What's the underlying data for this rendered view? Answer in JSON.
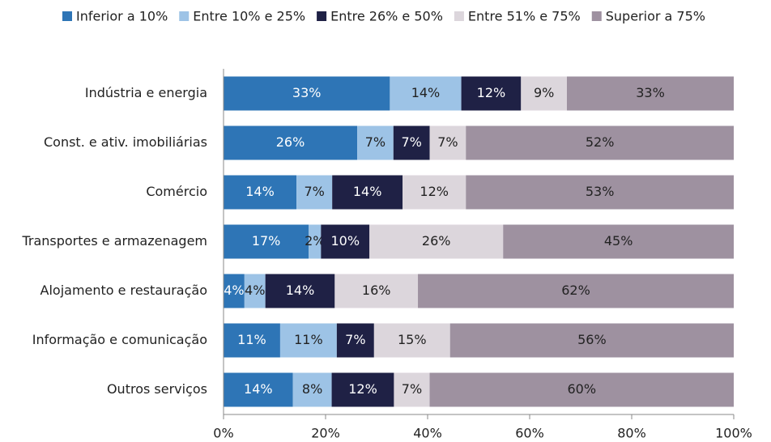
{
  "chart_data": {
    "type": "stacked_bar_horizontal",
    "categories": [
      "Indústria e energia",
      "Const. e ativ. imobiliárias",
      "Comércio",
      "Transportes e armazenagem",
      "Alojamento e restauração",
      "Informação e comunicação",
      "Outros serviços"
    ],
    "series": [
      {
        "name": "Inferior a 10%",
        "color": "#2e75b6",
        "values": [
          32.6,
          26.2,
          14.3,
          16.7,
          4.1,
          11.1,
          13.6
        ],
        "value_labels": [
          "33%",
          "26%",
          "14%",
          "17%",
          "4%",
          "11%",
          "14%"
        ]
      },
      {
        "name": "Entre 10% e 25%",
        "color": "#9dc3e6",
        "values": [
          14.0,
          7.1,
          7.0,
          2.4,
          4.1,
          11.1,
          7.6
        ],
        "value_labels": [
          "14%",
          "7%",
          "7%",
          "2%",
          "4%",
          "11%",
          "8%"
        ]
      },
      {
        "name": "Entre 26% e 50%",
        "color": "#1f2145",
        "values": [
          11.7,
          7.1,
          13.8,
          9.5,
          13.6,
          7.3,
          12.2
        ],
        "value_labels": [
          "12%",
          "7%",
          "14%",
          "10%",
          "14%",
          "7%",
          "12%"
        ]
      },
      {
        "name": "Entre 51% e 75%",
        "color": "#dcd6dc",
        "values": [
          9.0,
          7.1,
          12.4,
          26.2,
          16.3,
          14.9,
          7.0
        ],
        "value_labels": [
          "9%",
          "7%",
          "12%",
          "26%",
          "16%",
          "15%",
          "7%"
        ]
      },
      {
        "name": "Superior a 75%",
        "color": "#9e91a0",
        "values": [
          32.7,
          52.5,
          52.5,
          45.2,
          61.9,
          55.6,
          59.6
        ],
        "value_labels": [
          "33%",
          "52%",
          "53%",
          "45%",
          "62%",
          "56%",
          "60%"
        ]
      }
    ],
    "xlim": [
      0,
      100
    ],
    "xticks": [
      {
        "value": 0,
        "label": "0%"
      },
      {
        "value": 20,
        "label": "20%"
      },
      {
        "value": 40,
        "label": "40%"
      },
      {
        "value": 60,
        "label": "60%"
      },
      {
        "value": 80,
        "label": "80%"
      },
      {
        "value": 100,
        "label": "100%"
      }
    ],
    "legend": "top"
  }
}
